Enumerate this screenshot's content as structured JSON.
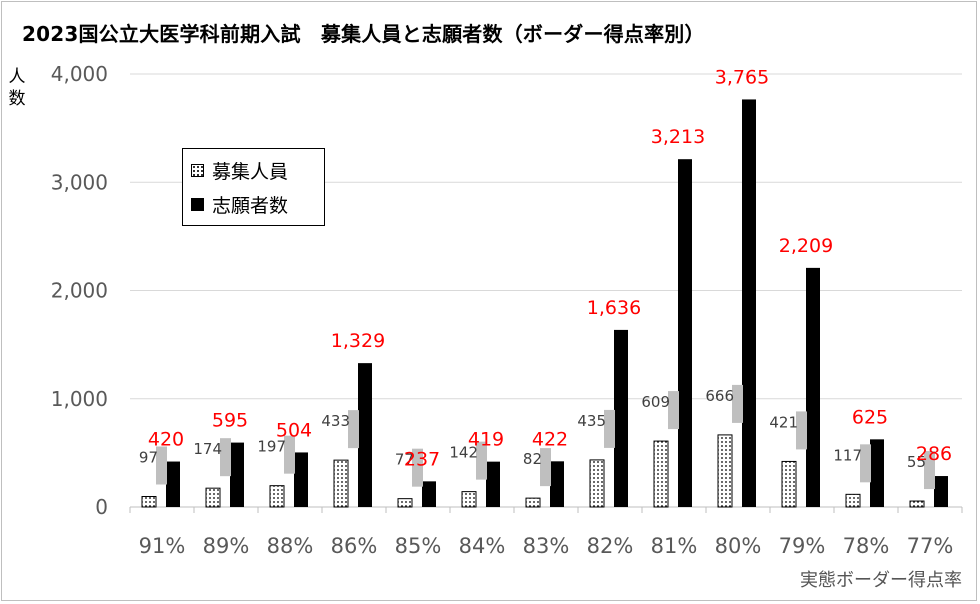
{
  "title": "2023国公立大医学科前期入試　募集人員と志願者数（ボーダー得点率別）",
  "ylabel": "人\n数",
  "xlabel": "実態ボーダー得点率",
  "legend": {
    "recruitment": "募集人員",
    "applicants": "志願者数"
  },
  "colors": {
    "applicant_label": "#ff0000",
    "applicant_bar": "#000000",
    "recruitment_bar": "dotted-white",
    "axis_text": "#595959"
  },
  "chart_data": {
    "type": "bar",
    "title": "2023国公立大医学科前期入試　募集人員と志願者数（ボーダー得点率別）",
    "xlabel": "実態ボーダー得点率",
    "ylabel": "人数",
    "ylim": [
      0,
      4000
    ],
    "yticks": [
      0,
      1000,
      2000,
      3000,
      4000
    ],
    "ytick_labels": [
      "0",
      "1,000",
      "2,000",
      "3,000",
      "4,000"
    ],
    "grid": true,
    "legend_position": "upper-left",
    "categories": [
      "91%",
      "89%",
      "88%",
      "86%",
      "85%",
      "84%",
      "83%",
      "82%",
      "81%",
      "80%",
      "79%",
      "78%",
      "77%"
    ],
    "series": [
      {
        "name": "募集人員",
        "values": [
          97,
          174,
          197,
          433,
          77,
          142,
          82,
          435,
          609,
          666,
          421,
          117,
          55
        ],
        "labels": [
          "97",
          "174",
          "197",
          "433",
          "77",
          "142",
          "82",
          "435",
          "609",
          "666",
          "421",
          "117",
          "55"
        ]
      },
      {
        "name": "志願者数",
        "values": [
          420,
          595,
          504,
          1329,
          237,
          419,
          422,
          1636,
          3213,
          3765,
          2209,
          625,
          286
        ],
        "labels": [
          "420",
          "595",
          "504",
          "1,329",
          "237",
          "419",
          "422",
          "1,636",
          "3,213",
          "3,765",
          "2,209",
          "625",
          "286"
        ]
      }
    ]
  }
}
